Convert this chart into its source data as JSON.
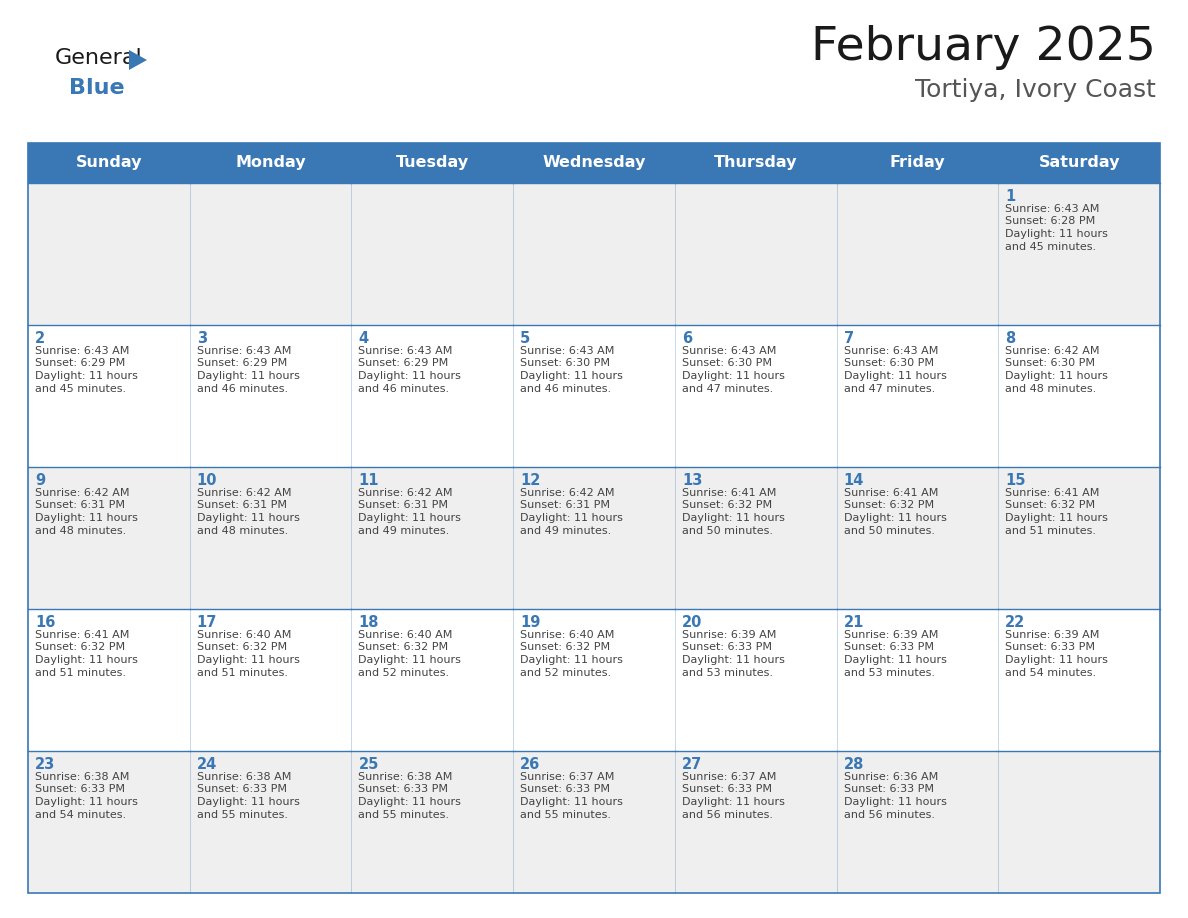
{
  "title": "February 2025",
  "subtitle": "Tortiya, Ivory Coast",
  "days_of_week": [
    "Sunday",
    "Monday",
    "Tuesday",
    "Wednesday",
    "Thursday",
    "Friday",
    "Saturday"
  ],
  "header_bg": "#3A77B5",
  "header_text": "#FFFFFF",
  "cell_bg_even": "#EFEFEF",
  "cell_bg_odd": "#FFFFFF",
  "cell_border": "#3A77B5",
  "day_number_color": "#3A77B5",
  "text_color": "#444444",
  "title_color": "#1A1A1A",
  "subtitle_color": "#555555",
  "background": "#FFFFFF",
  "calendar_data": [
    [
      null,
      null,
      null,
      null,
      null,
      null,
      {
        "day": 1,
        "sunrise": "6:43 AM",
        "sunset": "6:28 PM",
        "daylight": "11 hours\nand 45 minutes."
      }
    ],
    [
      {
        "day": 2,
        "sunrise": "6:43 AM",
        "sunset": "6:29 PM",
        "daylight": "11 hours\nand 45 minutes."
      },
      {
        "day": 3,
        "sunrise": "6:43 AM",
        "sunset": "6:29 PM",
        "daylight": "11 hours\nand 46 minutes."
      },
      {
        "day": 4,
        "sunrise": "6:43 AM",
        "sunset": "6:29 PM",
        "daylight": "11 hours\nand 46 minutes."
      },
      {
        "day": 5,
        "sunrise": "6:43 AM",
        "sunset": "6:30 PM",
        "daylight": "11 hours\nand 46 minutes."
      },
      {
        "day": 6,
        "sunrise": "6:43 AM",
        "sunset": "6:30 PM",
        "daylight": "11 hours\nand 47 minutes."
      },
      {
        "day": 7,
        "sunrise": "6:43 AM",
        "sunset": "6:30 PM",
        "daylight": "11 hours\nand 47 minutes."
      },
      {
        "day": 8,
        "sunrise": "6:42 AM",
        "sunset": "6:30 PM",
        "daylight": "11 hours\nand 48 minutes."
      }
    ],
    [
      {
        "day": 9,
        "sunrise": "6:42 AM",
        "sunset": "6:31 PM",
        "daylight": "11 hours\nand 48 minutes."
      },
      {
        "day": 10,
        "sunrise": "6:42 AM",
        "sunset": "6:31 PM",
        "daylight": "11 hours\nand 48 minutes."
      },
      {
        "day": 11,
        "sunrise": "6:42 AM",
        "sunset": "6:31 PM",
        "daylight": "11 hours\nand 49 minutes."
      },
      {
        "day": 12,
        "sunrise": "6:42 AM",
        "sunset": "6:31 PM",
        "daylight": "11 hours\nand 49 minutes."
      },
      {
        "day": 13,
        "sunrise": "6:41 AM",
        "sunset": "6:32 PM",
        "daylight": "11 hours\nand 50 minutes."
      },
      {
        "day": 14,
        "sunrise": "6:41 AM",
        "sunset": "6:32 PM",
        "daylight": "11 hours\nand 50 minutes."
      },
      {
        "day": 15,
        "sunrise": "6:41 AM",
        "sunset": "6:32 PM",
        "daylight": "11 hours\nand 51 minutes."
      }
    ],
    [
      {
        "day": 16,
        "sunrise": "6:41 AM",
        "sunset": "6:32 PM",
        "daylight": "11 hours\nand 51 minutes."
      },
      {
        "day": 17,
        "sunrise": "6:40 AM",
        "sunset": "6:32 PM",
        "daylight": "11 hours\nand 51 minutes."
      },
      {
        "day": 18,
        "sunrise": "6:40 AM",
        "sunset": "6:32 PM",
        "daylight": "11 hours\nand 52 minutes."
      },
      {
        "day": 19,
        "sunrise": "6:40 AM",
        "sunset": "6:32 PM",
        "daylight": "11 hours\nand 52 minutes."
      },
      {
        "day": 20,
        "sunrise": "6:39 AM",
        "sunset": "6:33 PM",
        "daylight": "11 hours\nand 53 minutes."
      },
      {
        "day": 21,
        "sunrise": "6:39 AM",
        "sunset": "6:33 PM",
        "daylight": "11 hours\nand 53 minutes."
      },
      {
        "day": 22,
        "sunrise": "6:39 AM",
        "sunset": "6:33 PM",
        "daylight": "11 hours\nand 54 minutes."
      }
    ],
    [
      {
        "day": 23,
        "sunrise": "6:38 AM",
        "sunset": "6:33 PM",
        "daylight": "11 hours\nand 54 minutes."
      },
      {
        "day": 24,
        "sunrise": "6:38 AM",
        "sunset": "6:33 PM",
        "daylight": "11 hours\nand 55 minutes."
      },
      {
        "day": 25,
        "sunrise": "6:38 AM",
        "sunset": "6:33 PM",
        "daylight": "11 hours\nand 55 minutes."
      },
      {
        "day": 26,
        "sunrise": "6:37 AM",
        "sunset": "6:33 PM",
        "daylight": "11 hours\nand 55 minutes."
      },
      {
        "day": 27,
        "sunrise": "6:37 AM",
        "sunset": "6:33 PM",
        "daylight": "11 hours\nand 56 minutes."
      },
      {
        "day": 28,
        "sunrise": "6:36 AM",
        "sunset": "6:33 PM",
        "daylight": "11 hours\nand 56 minutes."
      },
      null
    ]
  ],
  "logo_text_general": "General",
  "logo_text_blue": "Blue",
  "logo_color_general": "#1A1A1A",
  "logo_color_blue": "#3A77B5",
  "logo_triangle_color": "#3A77B5",
  "fig_width": 11.88,
  "fig_height": 9.18,
  "dpi": 100
}
